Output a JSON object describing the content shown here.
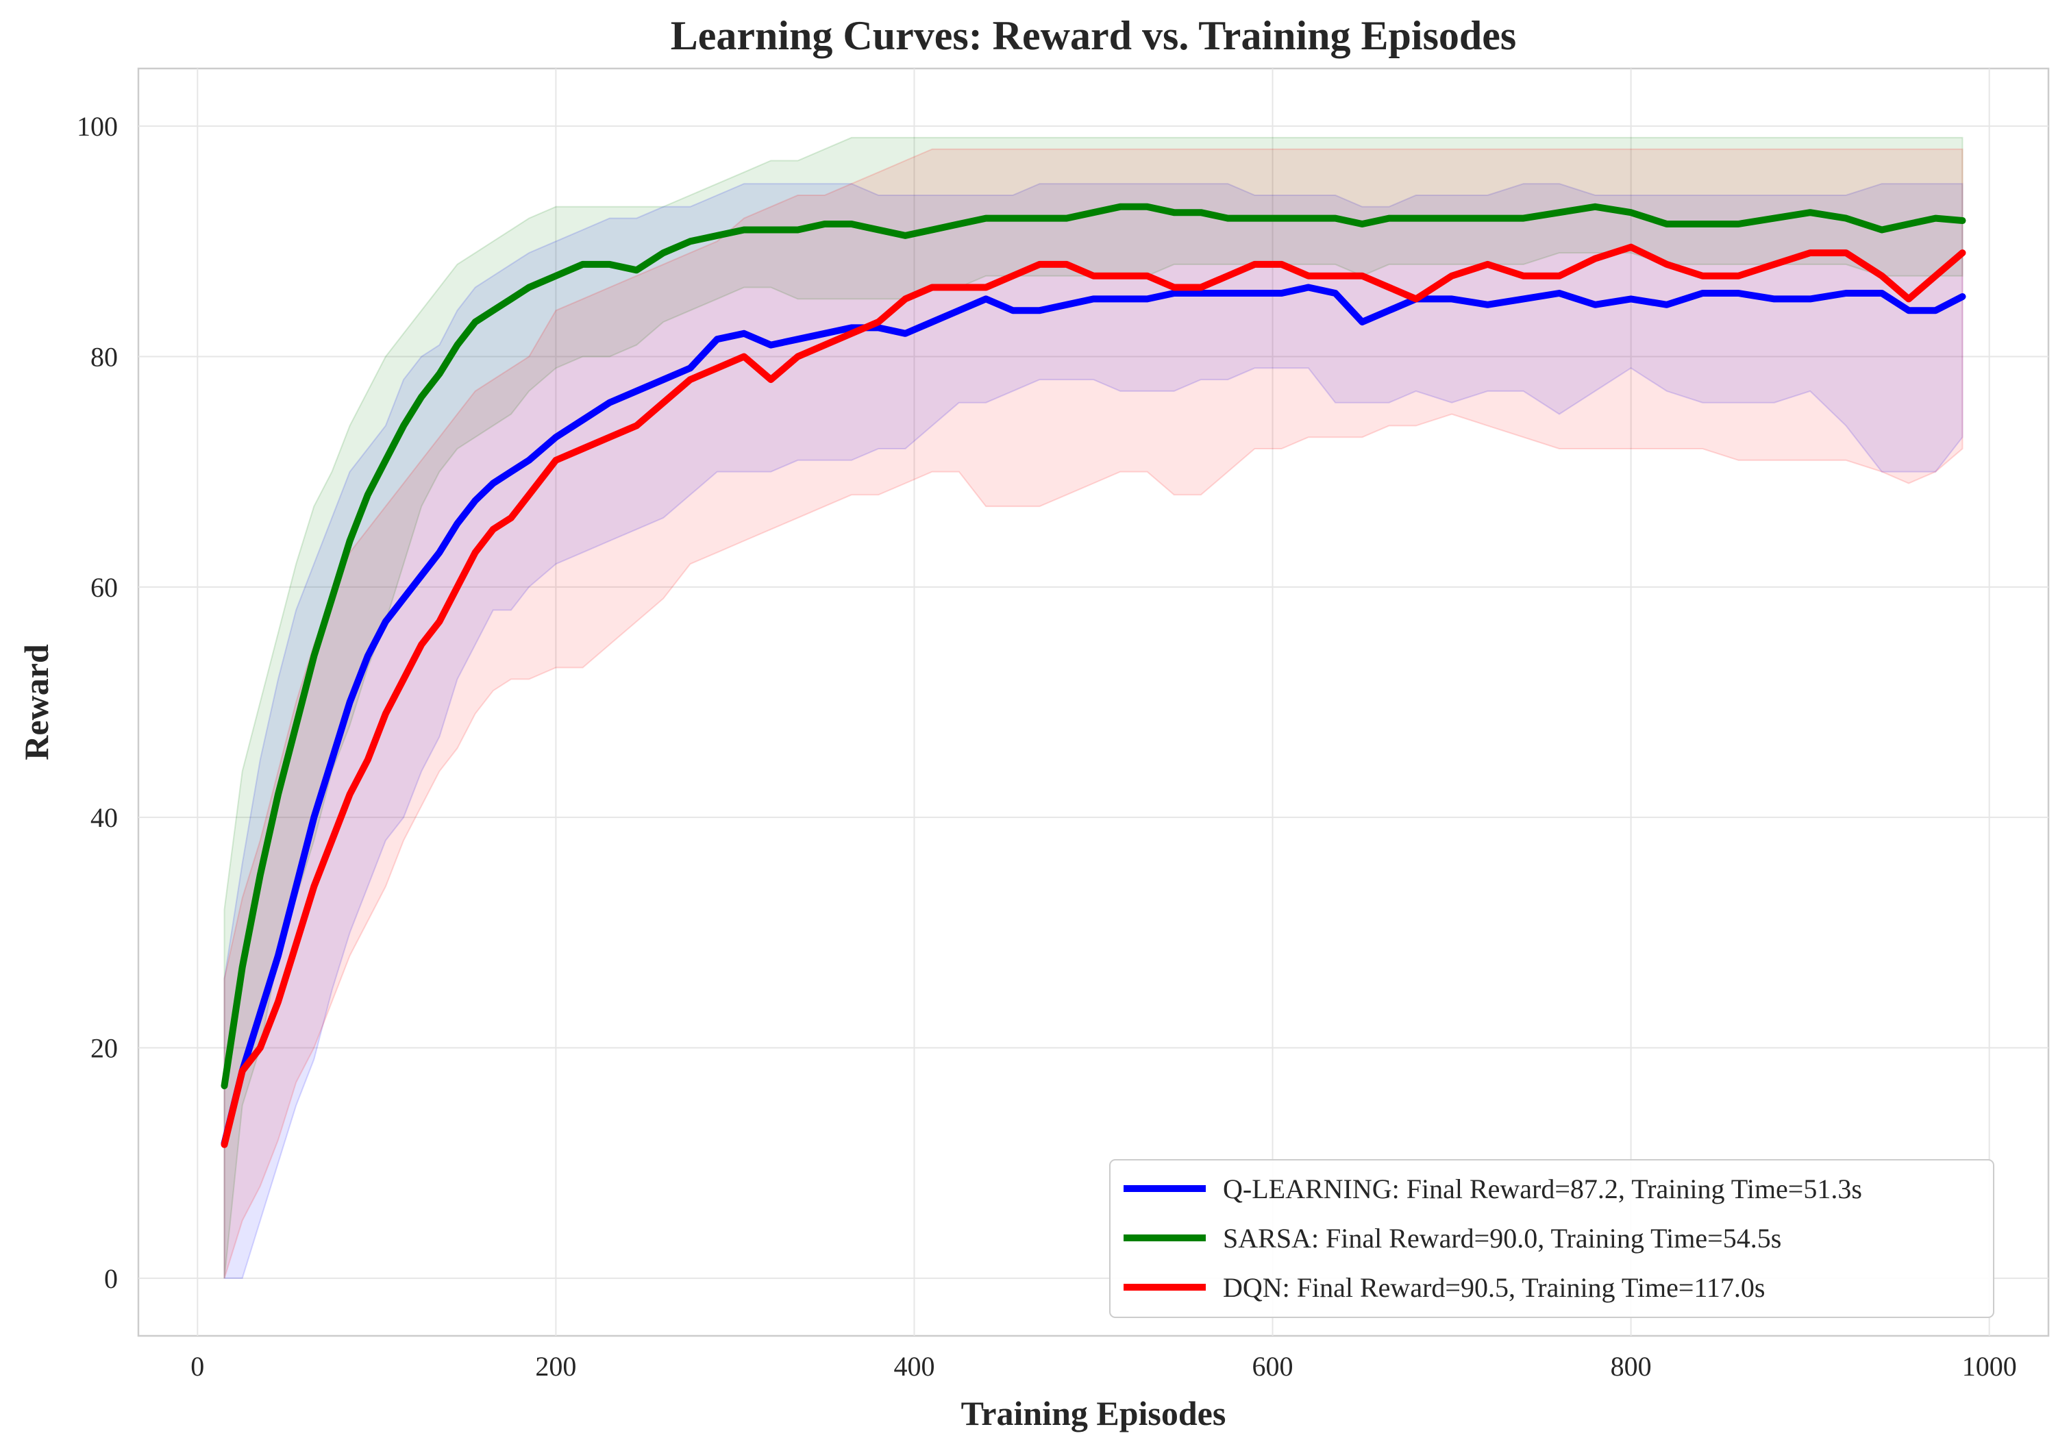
{
  "chart_data": {
    "type": "line",
    "title": "Learning Curves: Reward vs. Training Episodes",
    "xlabel": "Training Episodes",
    "ylabel": "Reward",
    "xlim": [
      -33,
      1033
    ],
    "ylim": [
      -5,
      105
    ],
    "xticks": [
      0,
      200,
      400,
      600,
      800,
      1000
    ],
    "yticks": [
      0,
      20,
      40,
      60,
      80,
      100
    ],
    "grid": true,
    "legend_position": "lower-right",
    "series": [
      {
        "name": "Q-LEARNING",
        "legend": "Q-LEARNING: Final Reward=87.2, Training Time=51.3s",
        "color": "#0000ff",
        "x": [
          15,
          25,
          35,
          45,
          55,
          65,
          75,
          85,
          95,
          105,
          115,
          125,
          135,
          145,
          155,
          165,
          175,
          185,
          200,
          215,
          230,
          245,
          260,
          275,
          290,
          305,
          320,
          335,
          350,
          365,
          380,
          395,
          410,
          425,
          440,
          455,
          470,
          485,
          500,
          515,
          530,
          545,
          560,
          575,
          590,
          605,
          620,
          635,
          650,
          665,
          680,
          700,
          720,
          740,
          760,
          780,
          800,
          820,
          840,
          860,
          880,
          900,
          920,
          940,
          955,
          970,
          985
        ],
        "values": [
          11.7,
          18,
          23,
          28,
          34,
          40,
          45,
          50,
          54,
          57,
          59,
          61,
          63,
          65.5,
          67.5,
          69,
          70,
          71,
          73,
          74.5,
          76,
          77,
          78,
          79,
          81.5,
          82,
          81,
          81.5,
          82,
          82.5,
          82.5,
          82,
          83,
          84,
          85,
          84,
          84,
          84.5,
          85,
          85,
          85,
          85.5,
          85.5,
          85.5,
          85.5,
          85.5,
          86,
          85.5,
          83,
          84,
          85,
          85,
          84.5,
          85,
          85.5,
          84.5,
          85,
          84.5,
          85.5,
          85.5,
          85,
          85,
          85.5,
          85.5,
          84,
          84,
          85.2
        ],
        "band_low": [
          0,
          0,
          5,
          10,
          15,
          19,
          25,
          30,
          34,
          38,
          40,
          44,
          47,
          52,
          55,
          58,
          58,
          60,
          62,
          63,
          64,
          65,
          66,
          68,
          70,
          70,
          70,
          71,
          71,
          71,
          72,
          72,
          74,
          76,
          76,
          77,
          78,
          78,
          78,
          77,
          77,
          77,
          78,
          78,
          79,
          79,
          79,
          76,
          76,
          76,
          77,
          76,
          77,
          77,
          75,
          77,
          79,
          77,
          76,
          76,
          76,
          77,
          74,
          70,
          70,
          70,
          73
        ],
        "band_high": [
          26,
          36,
          45,
          52,
          58,
          62,
          66,
          70,
          72,
          74,
          78,
          80,
          81,
          84,
          86,
          87,
          88,
          89,
          90,
          91,
          92,
          92,
          93,
          93,
          94,
          95,
          95,
          95,
          95,
          95,
          94,
          94,
          94,
          94,
          94,
          94,
          95,
          95,
          95,
          95,
          95,
          95,
          95,
          95,
          94,
          94,
          94,
          94,
          93,
          93,
          94,
          94,
          94,
          95,
          95,
          94,
          94,
          94,
          94,
          94,
          94,
          94,
          94,
          95,
          95,
          95,
          95
        ]
      },
      {
        "name": "SARSA",
        "legend": "SARSA: Final Reward=90.0, Training Time=54.5s",
        "color": "#008000",
        "x": [
          15,
          25,
          35,
          45,
          55,
          65,
          75,
          85,
          95,
          105,
          115,
          125,
          135,
          145,
          155,
          165,
          175,
          185,
          200,
          215,
          230,
          245,
          260,
          275,
          290,
          305,
          320,
          335,
          350,
          365,
          380,
          395,
          410,
          425,
          440,
          455,
          470,
          485,
          500,
          515,
          530,
          545,
          560,
          575,
          590,
          605,
          620,
          635,
          650,
          665,
          680,
          700,
          720,
          740,
          760,
          780,
          800,
          820,
          840,
          860,
          880,
          900,
          920,
          940,
          955,
          970,
          985
        ],
        "values": [
          16.7,
          27,
          35,
          42,
          48,
          54,
          59,
          64,
          68,
          71,
          74,
          76.5,
          78.5,
          81,
          83,
          84,
          85,
          86,
          87,
          88,
          88,
          87.5,
          89,
          90,
          90.5,
          91,
          91,
          91,
          91.5,
          91.5,
          91,
          90.5,
          91,
          91.5,
          92,
          92,
          92,
          92,
          92.5,
          93,
          93,
          92.5,
          92.5,
          92,
          92,
          92,
          92,
          92,
          91.5,
          92,
          92,
          92,
          92,
          92,
          92.5,
          93,
          92.5,
          91.5,
          91.5,
          91.5,
          92,
          92.5,
          92,
          91,
          91.5,
          92,
          91.8
        ],
        "band_low": [
          0,
          15,
          20,
          28,
          33,
          38,
          44,
          48,
          53,
          57,
          62,
          67,
          70,
          72,
          73,
          74,
          75,
          77,
          79,
          80,
          80,
          81,
          83,
          84,
          85,
          86,
          86,
          85,
          85,
          85,
          85,
          85,
          86,
          86,
          87,
          87,
          87,
          87,
          87,
          87,
          87,
          88,
          88,
          88,
          88,
          88,
          88,
          88,
          87,
          88,
          88,
          88,
          88,
          88,
          89,
          89,
          89,
          88,
          88,
          88,
          88,
          88,
          88,
          87,
          87,
          87,
          87
        ],
        "band_high": [
          32,
          44,
          50,
          56,
          62,
          67,
          70,
          74,
          77,
          80,
          82,
          84,
          86,
          88,
          89,
          90,
          91,
          92,
          93,
          93,
          93,
          93,
          93,
          94,
          95,
          96,
          97,
          97,
          98,
          99,
          99,
          99,
          99,
          99,
          99,
          99,
          99,
          99,
          99,
          99,
          99,
          99,
          99,
          99,
          99,
          99,
          99,
          99,
          99,
          99,
          99,
          99,
          99,
          99,
          99,
          99,
          99,
          99,
          99,
          99,
          99,
          99,
          99,
          99,
          99,
          99,
          99
        ]
      },
      {
        "name": "DQN",
        "legend": "DQN: Final Reward=90.5, Training Time=117.0s",
        "color": "#ff0000",
        "x": [
          15,
          25,
          35,
          45,
          55,
          65,
          75,
          85,
          95,
          105,
          115,
          125,
          135,
          145,
          155,
          165,
          175,
          185,
          200,
          215,
          230,
          245,
          260,
          275,
          290,
          305,
          320,
          335,
          350,
          365,
          380,
          395,
          410,
          425,
          440,
          455,
          470,
          485,
          500,
          515,
          530,
          545,
          560,
          575,
          590,
          605,
          620,
          635,
          650,
          665,
          680,
          700,
          720,
          740,
          760,
          780,
          800,
          820,
          840,
          860,
          880,
          900,
          920,
          940,
          955,
          970,
          985
        ],
        "values": [
          11.6,
          18,
          20,
          24,
          29,
          34,
          38,
          42,
          45,
          49,
          52,
          55,
          57,
          60,
          63,
          65,
          66,
          68,
          71,
          72,
          73,
          74,
          76,
          78,
          79,
          80,
          78,
          80,
          81,
          82,
          83,
          85,
          86,
          86,
          86,
          87,
          88,
          88,
          87,
          87,
          87,
          86,
          86,
          87,
          88,
          88,
          87,
          87,
          87,
          86,
          85,
          87,
          88,
          87,
          87,
          88.5,
          89.5,
          88,
          87,
          87,
          88,
          89,
          89,
          87,
          85,
          87,
          89
        ],
        "band_low": [
          0,
          5,
          8,
          12,
          17,
          20,
          24,
          28,
          31,
          34,
          38,
          41,
          44,
          46,
          49,
          51,
          52,
          52,
          53,
          53,
          55,
          57,
          59,
          62,
          63,
          64,
          65,
          66,
          67,
          68,
          68,
          69,
          70,
          70,
          67,
          67,
          67,
          68,
          69,
          70,
          70,
          68,
          68,
          70,
          72,
          72,
          73,
          73,
          73,
          74,
          74,
          75,
          74,
          73,
          72,
          72,
          72,
          72,
          72,
          71,
          71,
          71,
          71,
          70,
          69,
          70,
          72
        ],
        "band_high": [
          26,
          33,
          38,
          44,
          50,
          55,
          59,
          63,
          65,
          67,
          69,
          71,
          73,
          75,
          77,
          78,
          79,
          80,
          84,
          85,
          86,
          87,
          88,
          89,
          90,
          92,
          93,
          94,
          94,
          95,
          96,
          97,
          98,
          98,
          98,
          98,
          98,
          98,
          98,
          98,
          98,
          98,
          98,
          98,
          98,
          98,
          98,
          98,
          98,
          98,
          98,
          98,
          98,
          98,
          98,
          98,
          98,
          98,
          98,
          98,
          98,
          98,
          98,
          98,
          98,
          98,
          98
        ]
      }
    ]
  }
}
